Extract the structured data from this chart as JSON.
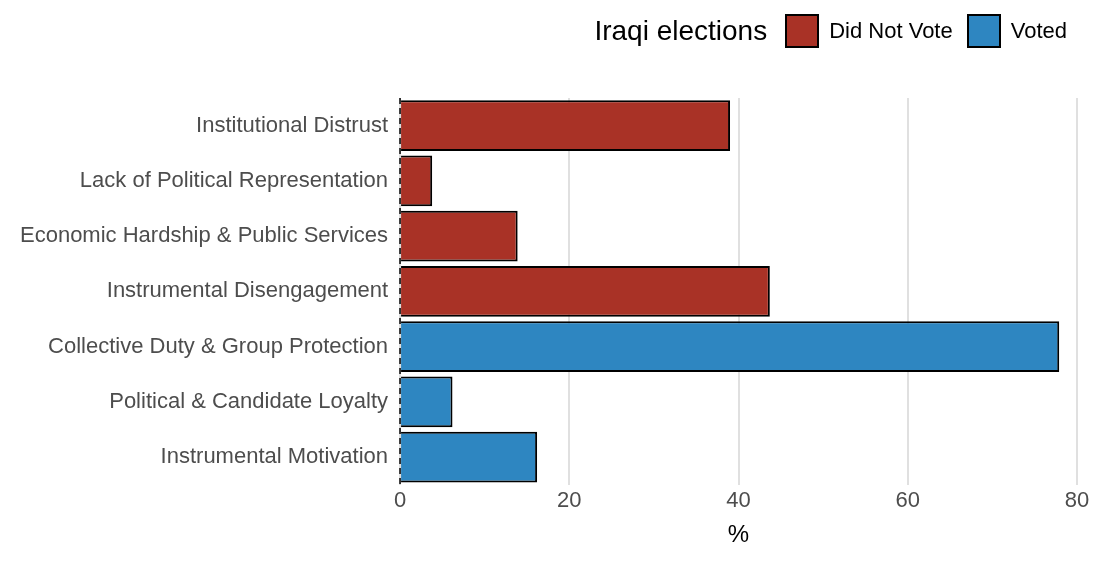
{
  "chart_data": {
    "type": "bar",
    "orientation": "horizontal",
    "legend_title": "Iraqi elections",
    "xlabel": "%",
    "categories": [
      "Institutional Distrust",
      "Lack of Political Representation",
      "Economic Hardship & Public Services",
      "Instrumental Disengagement",
      "Collective Duty & Group Protection",
      "Political & Candidate Loyalty",
      "Instrumental Motivation"
    ],
    "series": [
      {
        "name": "Did Not Vote",
        "color": "#a93226",
        "values": [
          39,
          3.8,
          13.9,
          43.7,
          null,
          null,
          null
        ]
      },
      {
        "name": "Voted",
        "color": "#2e86c1",
        "values": [
          null,
          null,
          null,
          null,
          77.9,
          6.2,
          16.2
        ]
      }
    ],
    "xlim": [
      0,
      80
    ],
    "xticks": [
      0,
      20,
      40,
      60,
      80
    ],
    "grid": "x",
    "legend": "top right",
    "ref_lines": [
      {
        "axis": "x",
        "value": 0,
        "color": "#000000",
        "line_style": "dashed"
      }
    ]
  }
}
